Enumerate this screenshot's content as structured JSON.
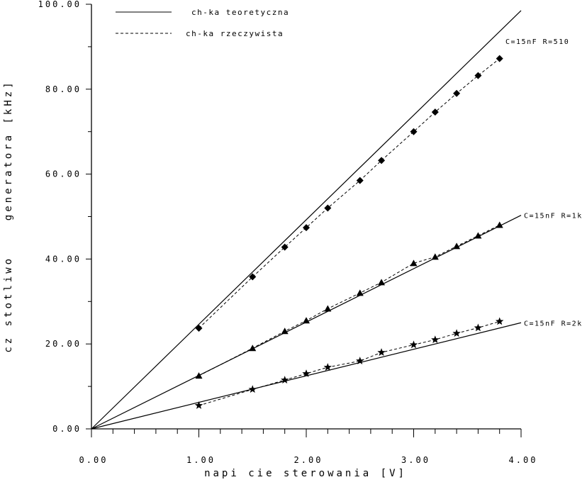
{
  "chart_data": {
    "type": "line",
    "xlabel": "napi cie sterowania [V]",
    "ylabel": "cz stotliwo    generatora [kHz]",
    "xlim": [
      0,
      4
    ],
    "ylim": [
      0,
      100
    ],
    "x_ticks": [
      "0.00",
      "1.00",
      "2.00",
      "3.00",
      "4.00"
    ],
    "y_ticks": [
      "0.00",
      "20.00",
      "40.00",
      "60.00",
      "80.00",
      "100.00"
    ],
    "grid": false,
    "legend": {
      "placement": "top-left",
      "entries": [
        {
          "label": "ch-ka teoretyczna",
          "style": "solid"
        },
        {
          "label": "ch-ka rzeczywista",
          "style": "dashed"
        }
      ]
    },
    "series": [
      {
        "name": "C=15nF R=510",
        "theoretical": [
          [
            0,
            0
          ],
          [
            4,
            98.5
          ]
        ],
        "measured": [
          [
            1.0,
            23.7
          ],
          [
            1.5,
            35.8
          ],
          [
            1.8,
            42.8
          ],
          [
            2.0,
            47.4
          ],
          [
            2.2,
            52.0
          ],
          [
            2.5,
            58.5
          ],
          [
            2.7,
            63.2
          ],
          [
            3.0,
            70.0
          ],
          [
            3.2,
            74.6
          ],
          [
            3.4,
            79.0
          ],
          [
            3.6,
            83.2
          ],
          [
            3.8,
            87.2
          ]
        ],
        "marker": "diamond"
      },
      {
        "name": "C=15nF R=1k",
        "theoretical": [
          [
            0,
            0
          ],
          [
            4,
            50.3
          ]
        ],
        "measured": [
          [
            1.0,
            12.5
          ],
          [
            1.5,
            19.0
          ],
          [
            1.8,
            23.0
          ],
          [
            2.0,
            25.5
          ],
          [
            2.2,
            28.3
          ],
          [
            2.5,
            32.0
          ],
          [
            2.7,
            34.5
          ],
          [
            3.0,
            39.0
          ],
          [
            3.2,
            40.5
          ],
          [
            3.4,
            43.0
          ],
          [
            3.6,
            45.5
          ],
          [
            3.8,
            48.0
          ]
        ],
        "marker": "triangle"
      },
      {
        "name": "C=15nF R=2k",
        "theoretical": [
          [
            0,
            0
          ],
          [
            4,
            25.0
          ]
        ],
        "measured": [
          [
            1.0,
            5.5
          ],
          [
            1.5,
            9.3
          ],
          [
            1.8,
            11.5
          ],
          [
            2.0,
            13.0
          ],
          [
            2.2,
            14.5
          ],
          [
            2.5,
            16.0
          ],
          [
            2.7,
            18.0
          ],
          [
            3.0,
            19.8
          ],
          [
            3.2,
            21.0
          ],
          [
            3.4,
            22.5
          ],
          [
            3.6,
            23.8
          ],
          [
            3.8,
            25.3
          ]
        ],
        "marker": "star"
      }
    ]
  }
}
